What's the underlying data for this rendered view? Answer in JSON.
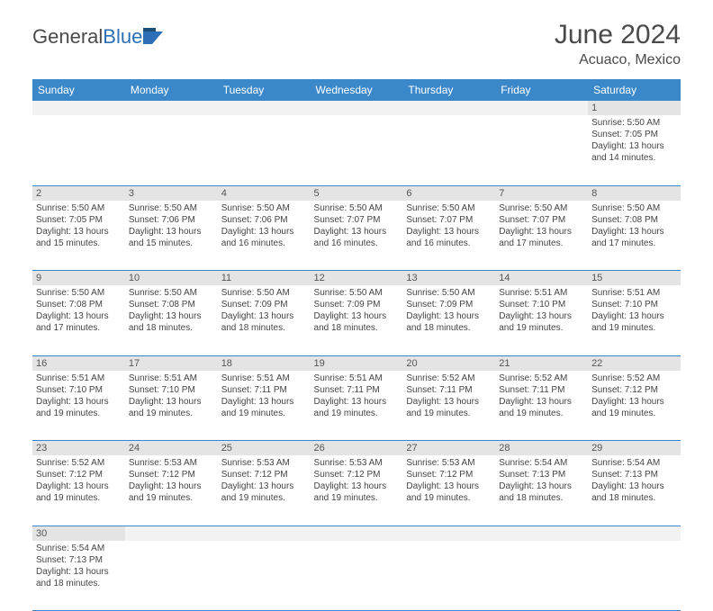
{
  "logo": {
    "part1": "General",
    "part2": "Blue"
  },
  "title": "June 2024",
  "subtitle": "Acuaco, Mexico",
  "colors": {
    "header_bg": "#3a88c9",
    "header_fg": "#ffffff",
    "daynum_bg": "#e4e4e4",
    "body_bg": "#ffffff",
    "border": "#3a88c9",
    "text": "#444444"
  },
  "day_names": [
    "Sunday",
    "Monday",
    "Tuesday",
    "Wednesday",
    "Thursday",
    "Friday",
    "Saturday"
  ],
  "weeks": [
    [
      null,
      null,
      null,
      null,
      null,
      null,
      {
        "n": "1",
        "r": "5:50 AM",
        "s": "7:05 PM",
        "d": "13 hours and 14 minutes."
      }
    ],
    [
      {
        "n": "2",
        "r": "5:50 AM",
        "s": "7:05 PM",
        "d": "13 hours and 15 minutes."
      },
      {
        "n": "3",
        "r": "5:50 AM",
        "s": "7:06 PM",
        "d": "13 hours and 15 minutes."
      },
      {
        "n": "4",
        "r": "5:50 AM",
        "s": "7:06 PM",
        "d": "13 hours and 16 minutes."
      },
      {
        "n": "5",
        "r": "5:50 AM",
        "s": "7:07 PM",
        "d": "13 hours and 16 minutes."
      },
      {
        "n": "6",
        "r": "5:50 AM",
        "s": "7:07 PM",
        "d": "13 hours and 16 minutes."
      },
      {
        "n": "7",
        "r": "5:50 AM",
        "s": "7:07 PM",
        "d": "13 hours and 17 minutes."
      },
      {
        "n": "8",
        "r": "5:50 AM",
        "s": "7:08 PM",
        "d": "13 hours and 17 minutes."
      }
    ],
    [
      {
        "n": "9",
        "r": "5:50 AM",
        "s": "7:08 PM",
        "d": "13 hours and 17 minutes."
      },
      {
        "n": "10",
        "r": "5:50 AM",
        "s": "7:08 PM",
        "d": "13 hours and 18 minutes."
      },
      {
        "n": "11",
        "r": "5:50 AM",
        "s": "7:09 PM",
        "d": "13 hours and 18 minutes."
      },
      {
        "n": "12",
        "r": "5:50 AM",
        "s": "7:09 PM",
        "d": "13 hours and 18 minutes."
      },
      {
        "n": "13",
        "r": "5:50 AM",
        "s": "7:09 PM",
        "d": "13 hours and 18 minutes."
      },
      {
        "n": "14",
        "r": "5:51 AM",
        "s": "7:10 PM",
        "d": "13 hours and 19 minutes."
      },
      {
        "n": "15",
        "r": "5:51 AM",
        "s": "7:10 PM",
        "d": "13 hours and 19 minutes."
      }
    ],
    [
      {
        "n": "16",
        "r": "5:51 AM",
        "s": "7:10 PM",
        "d": "13 hours and 19 minutes."
      },
      {
        "n": "17",
        "r": "5:51 AM",
        "s": "7:10 PM",
        "d": "13 hours and 19 minutes."
      },
      {
        "n": "18",
        "r": "5:51 AM",
        "s": "7:11 PM",
        "d": "13 hours and 19 minutes."
      },
      {
        "n": "19",
        "r": "5:51 AM",
        "s": "7:11 PM",
        "d": "13 hours and 19 minutes."
      },
      {
        "n": "20",
        "r": "5:52 AM",
        "s": "7:11 PM",
        "d": "13 hours and 19 minutes."
      },
      {
        "n": "21",
        "r": "5:52 AM",
        "s": "7:11 PM",
        "d": "13 hours and 19 minutes."
      },
      {
        "n": "22",
        "r": "5:52 AM",
        "s": "7:12 PM",
        "d": "13 hours and 19 minutes."
      }
    ],
    [
      {
        "n": "23",
        "r": "5:52 AM",
        "s": "7:12 PM",
        "d": "13 hours and 19 minutes."
      },
      {
        "n": "24",
        "r": "5:53 AM",
        "s": "7:12 PM",
        "d": "13 hours and 19 minutes."
      },
      {
        "n": "25",
        "r": "5:53 AM",
        "s": "7:12 PM",
        "d": "13 hours and 19 minutes."
      },
      {
        "n": "26",
        "r": "5:53 AM",
        "s": "7:12 PM",
        "d": "13 hours and 19 minutes."
      },
      {
        "n": "27",
        "r": "5:53 AM",
        "s": "7:12 PM",
        "d": "13 hours and 19 minutes."
      },
      {
        "n": "28",
        "r": "5:54 AM",
        "s": "7:13 PM",
        "d": "13 hours and 18 minutes."
      },
      {
        "n": "29",
        "r": "5:54 AM",
        "s": "7:13 PM",
        "d": "13 hours and 18 minutes."
      }
    ],
    [
      {
        "n": "30",
        "r": "5:54 AM",
        "s": "7:13 PM",
        "d": "13 hours and 18 minutes."
      },
      null,
      null,
      null,
      null,
      null,
      null
    ]
  ],
  "labels": {
    "sunrise": "Sunrise:",
    "sunset": "Sunset:",
    "daylight": "Daylight:"
  }
}
